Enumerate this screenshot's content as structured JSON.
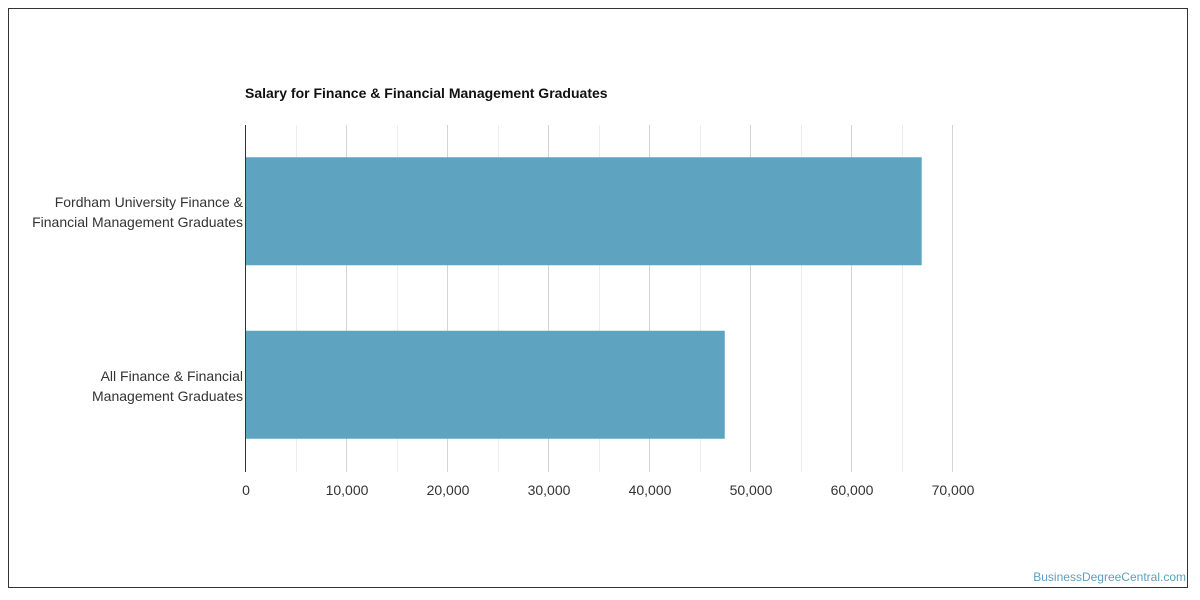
{
  "chart_data": {
    "type": "bar",
    "orientation": "horizontal",
    "title": "Salary for Finance & Financial Management Graduates",
    "categories": [
      "Fordham University Finance &\nFinancial Management Graduates",
      "All Finance & Financial\nManagement Graduates"
    ],
    "values": [
      67000,
      47500
    ],
    "xlim": [
      0,
      70000
    ],
    "x_ticks": [
      0,
      10000,
      20000,
      30000,
      40000,
      50000,
      60000,
      70000
    ],
    "x_tick_labels": [
      "0",
      "10,000",
      "20,000",
      "30,000",
      "40,000",
      "50,000",
      "60,000",
      "70,000"
    ],
    "grid": true,
    "bar_color": "#5ea3bf"
  },
  "watermark": "BusinessDegreeCentral.com"
}
